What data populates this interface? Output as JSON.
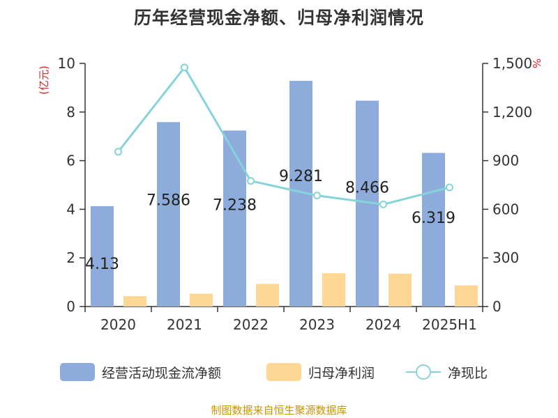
{
  "title": "历年经营现金净额、归母净利润情况",
  "source": "制图数据来自恒生聚源数据库",
  "chart_data": {
    "type": "bar",
    "categories": [
      "2020",
      "2021",
      "2022",
      "2023",
      "2024",
      "2025H1"
    ],
    "ylabel": "(亿元)",
    "y2label": "%",
    "ylim": [
      0,
      10
    ],
    "y2lim": [
      0,
      1500
    ],
    "yticks": [
      "0",
      "2",
      "4",
      "6",
      "8",
      "10"
    ],
    "y2ticks": [
      "0",
      "300",
      "600",
      "900",
      "1,200",
      "1,500"
    ],
    "series": [
      {
        "name": "经营活动现金流净额",
        "kind": "bar",
        "axis": "left",
        "color": "#8eacdb",
        "values": [
          4.13,
          7.586,
          7.238,
          9.281,
          8.466,
          6.319
        ],
        "labels": [
          "4.13",
          "7.586",
          "7.238",
          "9.281",
          "8.466",
          "6.319"
        ]
      },
      {
        "name": "归母净利润",
        "kind": "bar",
        "axis": "left",
        "color": "#ffd794",
        "values": [
          0.43,
          0.53,
          0.93,
          1.37,
          1.35,
          0.87
        ]
      },
      {
        "name": "净现比",
        "kind": "line",
        "axis": "right",
        "color": "#86d3d9",
        "values": [
          955,
          1475,
          775,
          685,
          630,
          735
        ]
      }
    ],
    "grid": false,
    "legend_position": "bottom"
  }
}
